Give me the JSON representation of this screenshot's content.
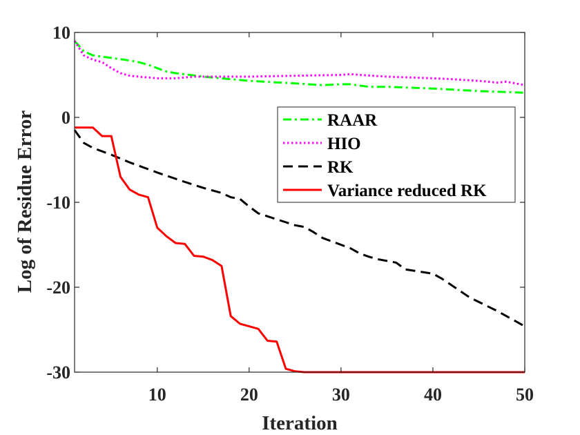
{
  "chart_data": {
    "type": "line",
    "title": "",
    "xlabel": "Iteration",
    "ylabel": "Log of Residue Error",
    "xlim": [
      1,
      50
    ],
    "ylim": [
      -30,
      10
    ],
    "xticks": [
      10,
      20,
      30,
      40,
      50
    ],
    "yticks": [
      -30,
      -20,
      -10,
      0,
      10
    ],
    "xtick_labels": [
      "10",
      "20",
      "30",
      "40",
      "50"
    ],
    "ytick_labels": [
      "-30",
      "-20",
      "-10",
      "0",
      "10"
    ],
    "grid": false,
    "legend_position": "right",
    "series": [
      {
        "name": "RAAR",
        "color": "#00ff00",
        "dash": "dash-dot",
        "x": [
          1,
          2,
          3,
          5,
          7,
          8,
          9,
          10,
          11,
          12,
          15,
          20,
          25,
          28,
          30,
          31,
          33,
          35,
          40,
          45,
          50
        ],
        "y": [
          9.0,
          7.8,
          7.3,
          7.0,
          6.7,
          6.5,
          6.2,
          5.8,
          5.4,
          5.2,
          4.8,
          4.3,
          4.0,
          3.8,
          3.9,
          3.9,
          3.6,
          3.6,
          3.4,
          3.1,
          2.9
        ]
      },
      {
        "name": "HIO",
        "color": "#ff00ff",
        "dash": "dotted",
        "x": [
          1,
          2,
          3,
          4,
          5,
          6,
          7,
          8,
          10,
          12,
          14,
          15,
          18,
          20,
          25,
          30,
          31,
          32,
          35,
          40,
          42,
          45,
          47,
          48,
          50
        ],
        "y": [
          9.0,
          7.3,
          6.8,
          6.5,
          5.8,
          5.2,
          4.9,
          4.8,
          4.6,
          4.6,
          4.8,
          4.8,
          4.8,
          4.8,
          4.9,
          5.0,
          5.1,
          5.0,
          4.8,
          4.6,
          4.5,
          4.3,
          4.1,
          4.2,
          3.8
        ]
      },
      {
        "name": "RK",
        "color": "#000000",
        "dash": "dashed",
        "x": [
          1,
          2,
          3,
          5,
          7,
          10,
          13,
          15,
          17,
          18,
          19,
          20,
          21,
          23,
          25,
          26,
          27,
          28,
          29,
          30,
          31,
          32,
          33,
          34,
          36,
          37,
          40,
          41,
          44,
          47,
          50
        ],
        "y": [
          -1.5,
          -3.0,
          -3.6,
          -4.4,
          -5.3,
          -6.5,
          -7.6,
          -8.3,
          -8.9,
          -9.4,
          -9.6,
          -10.5,
          -11.3,
          -12.0,
          -12.7,
          -12.9,
          -13.5,
          -14.2,
          -14.6,
          -15.0,
          -15.4,
          -16.0,
          -16.4,
          -16.7,
          -17.1,
          -17.9,
          -18.4,
          -19.0,
          -21.2,
          -22.8,
          -24.6
        ]
      },
      {
        "name": "Variance reduced RK",
        "color": "#ff0000",
        "dash": "solid",
        "x": [
          1,
          2,
          3,
          4,
          5,
          6,
          7,
          8,
          9,
          10,
          11,
          12,
          13,
          14,
          15,
          16,
          17,
          18,
          19,
          20,
          21,
          22,
          23,
          24,
          25,
          26,
          30,
          40,
          50
        ],
        "y": [
          -1.2,
          -1.2,
          -1.2,
          -2.2,
          -2.2,
          -7.0,
          -8.5,
          -9.1,
          -9.4,
          -13.0,
          -14.0,
          -14.8,
          -14.9,
          -16.3,
          -16.4,
          -16.8,
          -17.5,
          -23.4,
          -24.3,
          -24.6,
          -24.9,
          -26.3,
          -26.4,
          -29.6,
          -29.9,
          -30.0,
          -30.0,
          -30.0,
          -30.0
        ]
      }
    ]
  }
}
